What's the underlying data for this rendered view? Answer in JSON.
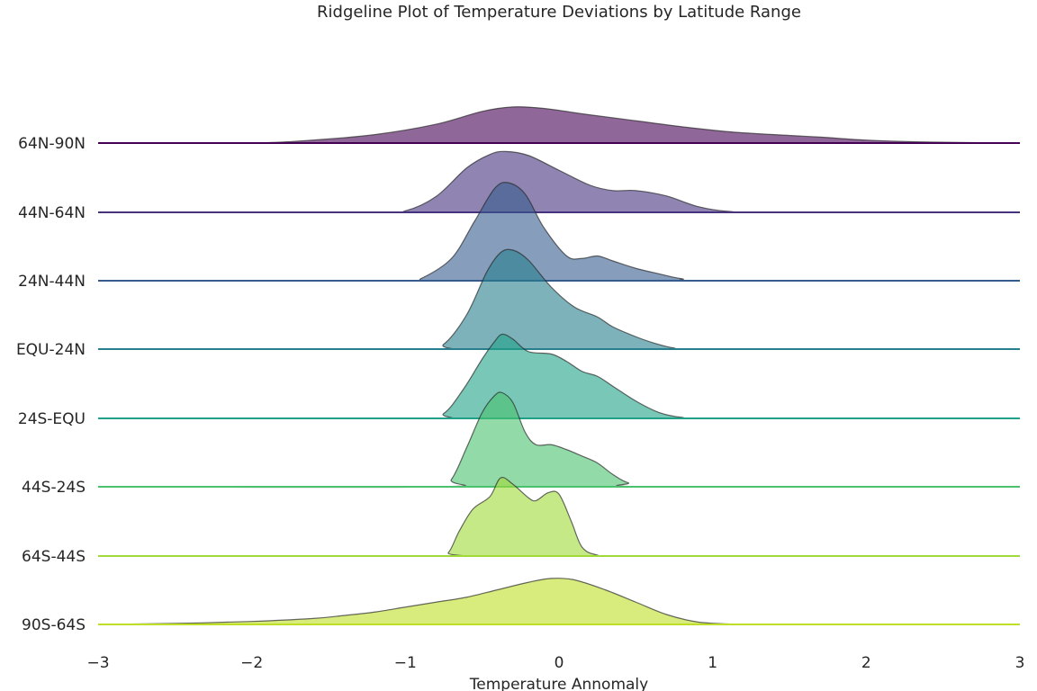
{
  "chart_data": {
    "type": "area",
    "subtype": "ridgeline",
    "title": "Ridgeline Plot of Temperature Deviations by Latitude Range",
    "xlabel": "Temperature Annomaly",
    "ylabel": "",
    "xlim": [
      -3,
      3
    ],
    "x_ticks": [
      -3,
      -2,
      -1,
      0,
      1,
      2,
      3
    ],
    "x_tick_labels": [
      "−3",
      "−2",
      "−1",
      "0",
      "1",
      "2",
      "3"
    ],
    "grid": false,
    "legend": "none",
    "series": [
      {
        "name": "64N-90N",
        "color": "#440154",
        "points": [
          [
            -3,
            0
          ],
          [
            -2,
            0.003
          ],
          [
            -1.6,
            0.06
          ],
          [
            -1.2,
            0.17
          ],
          [
            -0.8,
            0.38
          ],
          [
            -0.5,
            0.64
          ],
          [
            -0.3,
            0.73
          ],
          [
            -0.1,
            0.7
          ],
          [
            0.2,
            0.57
          ],
          [
            0.5,
            0.45
          ],
          [
            0.8,
            0.33
          ],
          [
            1.1,
            0.23
          ],
          [
            1.4,
            0.17
          ],
          [
            1.7,
            0.12
          ],
          [
            2,
            0.06
          ],
          [
            2.4,
            0.02
          ],
          [
            3,
            0
          ]
        ]
      },
      {
        "name": "44N-64N",
        "color": "#46327e",
        "points": [
          [
            -3,
            0
          ],
          [
            -1.2,
            0
          ],
          [
            -1,
            0.03
          ],
          [
            -0.8,
            0.32
          ],
          [
            -0.6,
            0.9
          ],
          [
            -0.45,
            1.17
          ],
          [
            -0.35,
            1.23
          ],
          [
            -0.2,
            1.15
          ],
          [
            0,
            0.85
          ],
          [
            0.2,
            0.55
          ],
          [
            0.35,
            0.44
          ],
          [
            0.5,
            0.44
          ],
          [
            0.7,
            0.33
          ],
          [
            0.9,
            0.12
          ],
          [
            1.1,
            0.02
          ],
          [
            1.4,
            0
          ],
          [
            3,
            0
          ]
        ]
      },
      {
        "name": "24N-44N",
        "color": "#365c8d",
        "points": [
          [
            -3,
            0
          ],
          [
            -1,
            0
          ],
          [
            -0.9,
            0.04
          ],
          [
            -0.7,
            0.45
          ],
          [
            -0.55,
            1.2
          ],
          [
            -0.42,
            1.86
          ],
          [
            -0.33,
            1.98
          ],
          [
            -0.22,
            1.75
          ],
          [
            -0.1,
            1.08
          ],
          [
            0.05,
            0.5
          ],
          [
            0.15,
            0.45
          ],
          [
            0.25,
            0.5
          ],
          [
            0.35,
            0.4
          ],
          [
            0.5,
            0.25
          ],
          [
            0.65,
            0.14
          ],
          [
            0.8,
            0.04
          ],
          [
            1,
            0
          ],
          [
            3,
            0
          ]
        ]
      },
      {
        "name": "EQU-24N",
        "color": "#277f8e",
        "points": [
          [
            -3,
            0
          ],
          [
            -0.9,
            0
          ],
          [
            -0.75,
            0.1
          ],
          [
            -0.6,
            0.7
          ],
          [
            -0.47,
            1.56
          ],
          [
            -0.38,
            1.95
          ],
          [
            -0.3,
            2.0
          ],
          [
            -0.2,
            1.8
          ],
          [
            -0.05,
            1.25
          ],
          [
            0.1,
            0.85
          ],
          [
            0.25,
            0.65
          ],
          [
            0.35,
            0.45
          ],
          [
            0.5,
            0.25
          ],
          [
            0.62,
            0.12
          ],
          [
            0.75,
            0.02
          ],
          [
            0.9,
            0
          ],
          [
            3,
            0
          ]
        ]
      },
      {
        "name": "24S-EQU",
        "color": "#1fa187",
        "points": [
          [
            -3,
            0
          ],
          [
            -0.9,
            0
          ],
          [
            -0.75,
            0.1
          ],
          [
            -0.62,
            0.6
          ],
          [
            -0.5,
            1.2
          ],
          [
            -0.42,
            1.55
          ],
          [
            -0.37,
            1.7
          ],
          [
            -0.3,
            1.6
          ],
          [
            -0.2,
            1.35
          ],
          [
            -0.05,
            1.3
          ],
          [
            0.05,
            1.15
          ],
          [
            0.15,
            0.95
          ],
          [
            0.25,
            0.85
          ],
          [
            0.35,
            0.65
          ],
          [
            0.5,
            0.35
          ],
          [
            0.65,
            0.12
          ],
          [
            0.8,
            0.02
          ],
          [
            1,
            0
          ],
          [
            3,
            0
          ]
        ]
      },
      {
        "name": "44S-24S",
        "color": "#4ac16d",
        "points": [
          [
            -3,
            0
          ],
          [
            -0.8,
            0
          ],
          [
            -0.7,
            0.15
          ],
          [
            -0.6,
            0.8
          ],
          [
            -0.5,
            1.5
          ],
          [
            -0.42,
            1.84
          ],
          [
            -0.37,
            1.9
          ],
          [
            -0.3,
            1.7
          ],
          [
            -0.22,
            1.1
          ],
          [
            -0.15,
            0.85
          ],
          [
            -0.05,
            0.85
          ],
          [
            0.05,
            0.75
          ],
          [
            0.15,
            0.62
          ],
          [
            0.25,
            0.48
          ],
          [
            0.35,
            0.25
          ],
          [
            0.45,
            0.08
          ],
          [
            0.6,
            0
          ],
          [
            3,
            0
          ]
        ]
      },
      {
        "name": "64S-44S",
        "color": "#a0da39",
        "points": [
          [
            -3,
            0
          ],
          [
            -0.8,
            0
          ],
          [
            -0.72,
            0.07
          ],
          [
            -0.65,
            0.5
          ],
          [
            -0.56,
            0.95
          ],
          [
            -0.45,
            1.2
          ],
          [
            -0.38,
            1.58
          ],
          [
            -0.3,
            1.45
          ],
          [
            -0.2,
            1.18
          ],
          [
            -0.15,
            1.12
          ],
          [
            -0.07,
            1.28
          ],
          [
            0,
            1.25
          ],
          [
            0.08,
            0.7
          ],
          [
            0.15,
            0.18
          ],
          [
            0.25,
            0.02
          ],
          [
            0.4,
            0
          ],
          [
            3,
            0
          ]
        ]
      },
      {
        "name": "90S-64S",
        "color": "#bddf26",
        "points": [
          [
            -3,
            0
          ],
          [
            -2.5,
            0.02
          ],
          [
            -2,
            0.06
          ],
          [
            -1.6,
            0.12
          ],
          [
            -1.4,
            0.18
          ],
          [
            -1.2,
            0.25
          ],
          [
            -1,
            0.35
          ],
          [
            -0.8,
            0.45
          ],
          [
            -0.6,
            0.55
          ],
          [
            -0.4,
            0.7
          ],
          [
            -0.2,
            0.85
          ],
          [
            -0.05,
            0.93
          ],
          [
            0.1,
            0.9
          ],
          [
            0.3,
            0.7
          ],
          [
            0.5,
            0.45
          ],
          [
            0.7,
            0.2
          ],
          [
            0.9,
            0.05
          ],
          [
            1.1,
            0.01
          ],
          [
            1.3,
            0
          ],
          [
            3,
            0
          ]
        ]
      }
    ]
  }
}
